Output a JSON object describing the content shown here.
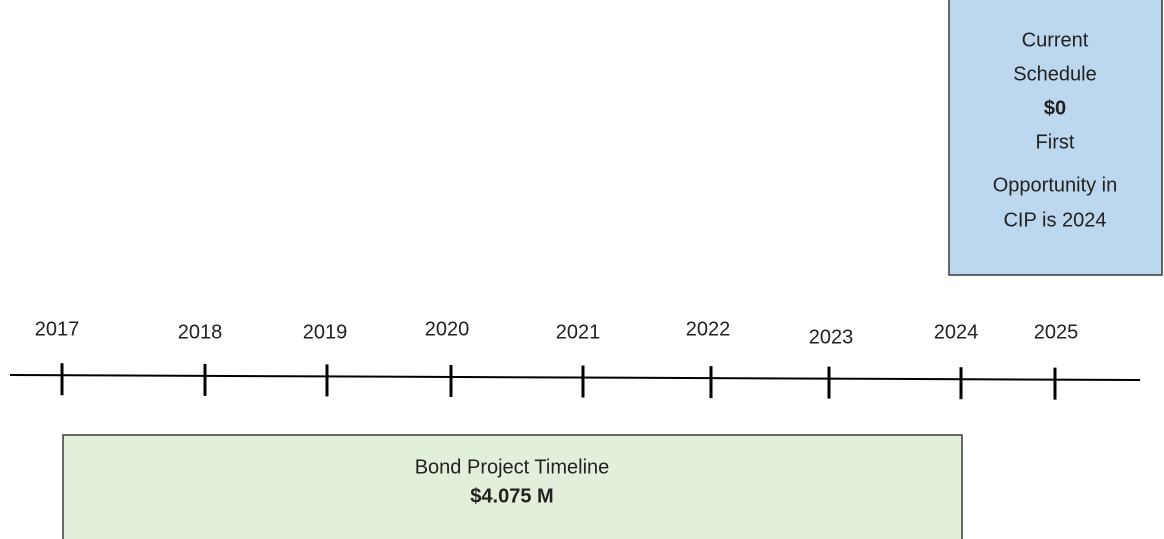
{
  "current_schedule": {
    "lines": [
      "Current",
      "Schedule",
      "$0",
      "First",
      "Opportunity in",
      "CIP is 2024"
    ]
  },
  "timeline": {
    "years": [
      "2017",
      "2018",
      "2019",
      "2020",
      "2021",
      "2022",
      "2023",
      "2024",
      "2025"
    ]
  },
  "bond_project": {
    "title": "Bond Project Timeline",
    "amount": "$4.075 M"
  }
}
